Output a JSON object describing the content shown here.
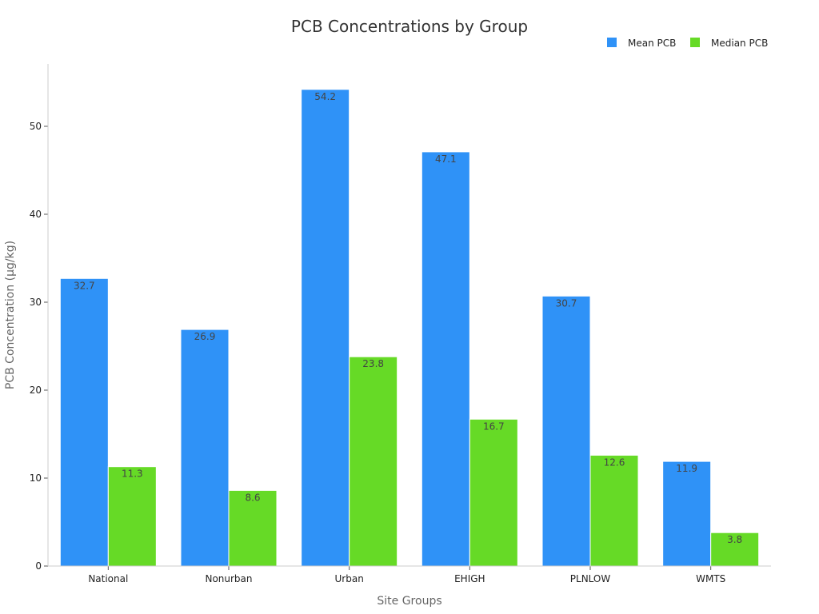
{
  "chart_data": {
    "type": "bar",
    "title": "PCB Concentrations by Group",
    "xlabel": "Site Groups",
    "ylabel": "PCB Concentration (µg/kg)",
    "categories": [
      "National",
      "Nonurban",
      "Urban",
      "EHIGH",
      "PLNLOW",
      "WMTS"
    ],
    "series": [
      {
        "name": "Mean PCB",
        "values": [
          32.7,
          26.9,
          54.2,
          47.1,
          30.7,
          11.9
        ],
        "color": "#2f92f7"
      },
      {
        "name": "Median PCB",
        "values": [
          11.3,
          8.6,
          23.8,
          16.7,
          12.6,
          3.8
        ],
        "color": "#66da26"
      }
    ],
    "ylim": [
      0,
      57
    ],
    "yticks": [
      "0",
      "10",
      "20",
      "30",
      "40",
      "50"
    ],
    "grid": false,
    "legend_position": "top-right",
    "data_labels": true
  }
}
